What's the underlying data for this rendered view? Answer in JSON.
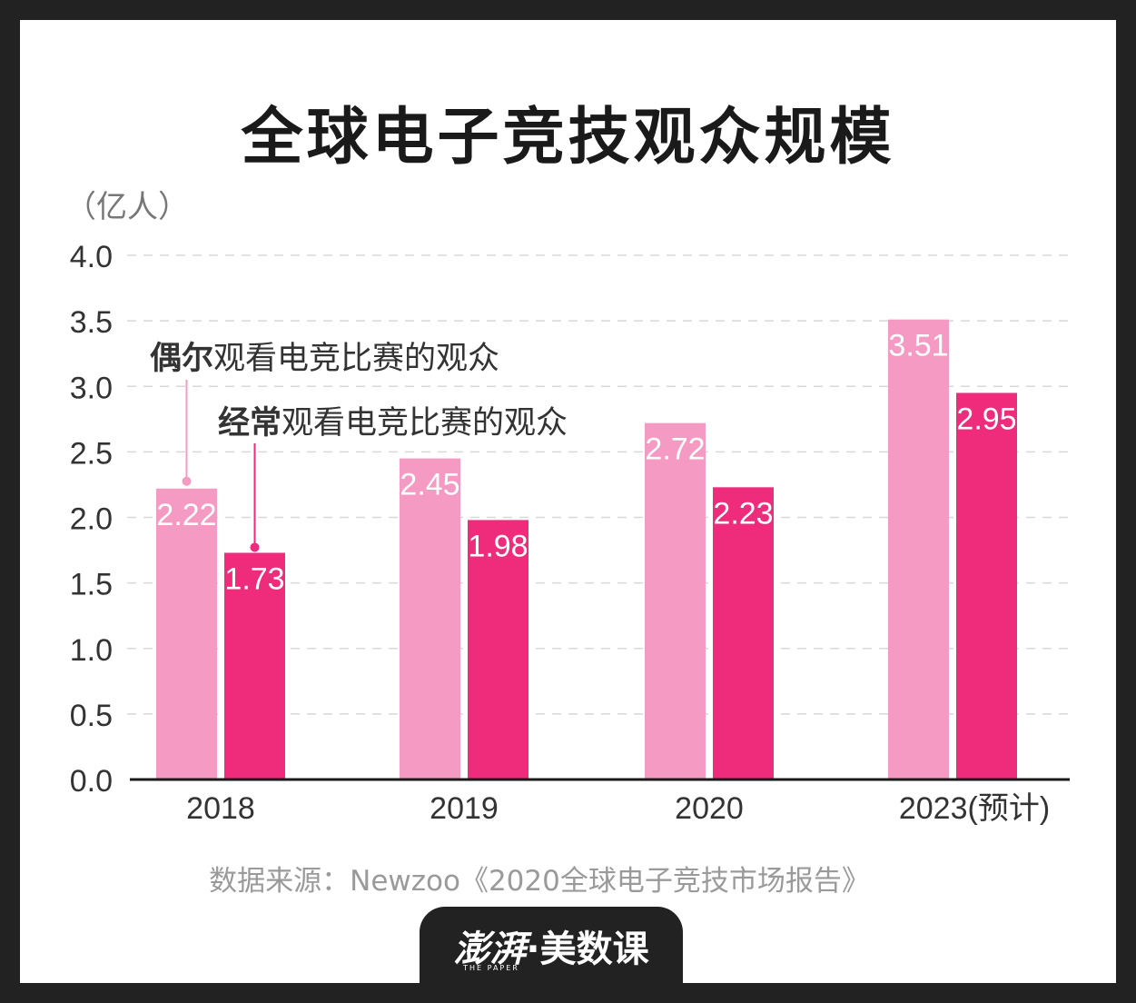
{
  "chart_data": {
    "type": "bar",
    "title": "全球电子竞技观众规模",
    "unit_label": "（亿人）",
    "categories": [
      "2018",
      "2019",
      "2020",
      "2023(预计)"
    ],
    "ylim": [
      0,
      4.0
    ],
    "yticks": [
      "0.0",
      "0.5",
      "1.0",
      "1.5",
      "2.0",
      "2.5",
      "3.0",
      "3.5",
      "4.0"
    ],
    "grid": true,
    "series": [
      {
        "name": "偶尔观看电竞比赛的观众",
        "color": "#f49ac3",
        "values": [
          2.22,
          2.45,
          2.72,
          3.51
        ]
      },
      {
        "name": "经常观看电竞比赛的观众",
        "color": "#ef2b7c",
        "values": [
          1.73,
          1.98,
          2.23,
          2.95
        ]
      }
    ]
  },
  "legend": {
    "item1_bold": "偶尔",
    "item1_rest": "观看电竞比赛的观众",
    "item2_bold": "经常",
    "item2_rest": "观看电竞比赛的观众"
  },
  "source": "数据来源：Newzoo《2020全球电子竞技市场报告》",
  "brand": {
    "logo": "澎湃",
    "name": "·美数课",
    "sub": "THE PAPER"
  }
}
